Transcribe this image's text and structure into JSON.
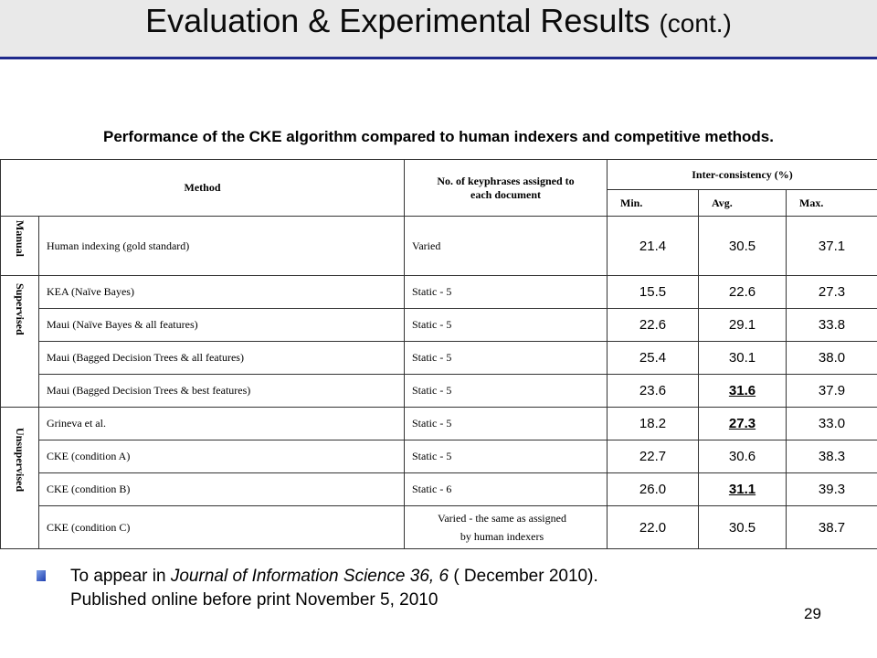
{
  "slide": {
    "title": "Evaluation & Experimental Results",
    "title_suffix": "(cont.)",
    "caption": "Performance of the CKE algorithm compared to human indexers and competitive methods.",
    "page_number": "29"
  },
  "table": {
    "headers": {
      "method": "Method",
      "nkp_line1": "No. of keyphrases assigned to",
      "nkp_line2": "each document",
      "inter": "Inter-consistency (%)",
      "min": "Min.",
      "avg": "Avg.",
      "max": "Max."
    },
    "groups": {
      "manual": "Manual",
      "supervised": "Supervised",
      "unsupervised": "Unsupervised"
    },
    "rows": [
      {
        "method": "Human indexing (gold standard)",
        "nkp": "Varied",
        "min": "21.4",
        "avg": "30.5",
        "max": "37.1"
      },
      {
        "method": "KEA (Naïve Bayes)",
        "nkp": "Static - 5",
        "min": "15.5",
        "avg": "22.6",
        "max": "27.3"
      },
      {
        "method": "Maui (Naïve Bayes & all features)",
        "nkp": "Static - 5",
        "min": "22.6",
        "avg": "29.1",
        "max": "33.8"
      },
      {
        "method": "Maui (Bagged Decision Trees & all features)",
        "nkp": "Static - 5",
        "min": "25.4",
        "avg": "30.1",
        "max": "38.0"
      },
      {
        "method": "Maui (Bagged Decision Trees & best features)",
        "nkp": "Static - 5",
        "min": "23.6",
        "avg": "31.6",
        "max": "37.9"
      },
      {
        "method": "Grineva et al.",
        "nkp": "Static - 5",
        "min": "18.2",
        "avg": "27.3",
        "max": "33.0"
      },
      {
        "method": "CKE (condition A)",
        "nkp": "Static - 5",
        "min": "22.7",
        "avg": "30.6",
        "max": "38.3"
      },
      {
        "method": "CKE (condition B)",
        "nkp": "Static - 6",
        "min": "26.0",
        "avg": "31.1",
        "max": "39.3"
      },
      {
        "method": "CKE (condition C)",
        "nkp_line1": "Varied - the same as assigned",
        "nkp_line2": "by human indexers",
        "min": "22.0",
        "avg": "30.5",
        "max": "38.7"
      }
    ]
  },
  "footnote": {
    "prefix": "To appear in ",
    "journal": "Journal of Information Science 36, 6",
    "suffix": " ( December 2010).",
    "line2": "Published online before print November 5, 2010"
  },
  "colors": {
    "title_rule": "#1f2a8c",
    "title_band": "#e9e9e9",
    "bullet": "#2a4cc0"
  }
}
